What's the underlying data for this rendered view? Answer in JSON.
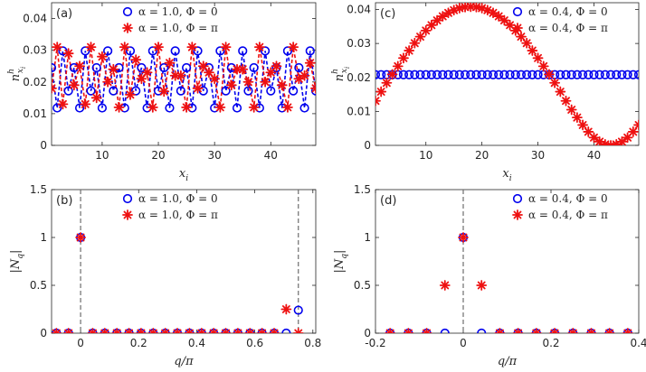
{
  "figure": {
    "description_free": true
  },
  "colors": {
    "blue": "#0000ee",
    "red": "#ee1111",
    "axis": "#262626",
    "dash": "#6e6e6e"
  },
  "chart_data": [
    {
      "id": "a",
      "type": "line",
      "panel_label": "(a)",
      "xlabel": "x_i",
      "ylabel": "n^h_{x_i}",
      "xlim": [
        1,
        48
      ],
      "ylim": [
        0,
        0.045
      ],
      "xticks": [
        10,
        20,
        30,
        40
      ],
      "xtick_labels": [
        "10",
        "20",
        "30",
        "40"
      ],
      "yticks": [
        0,
        0.01,
        0.02,
        0.03,
        0.04
      ],
      "ytick_labels": [
        "0",
        "0.01",
        "0.02",
        "0.03",
        "0.04"
      ],
      "legend": [
        "α = 1.0,  Φ = 0",
        "α = 1.0,  Φ = π"
      ],
      "legend_position": "top-center",
      "series": [
        {
          "name": "α = 1.0,  Φ = 0",
          "marker": "open-circle",
          "line": "dashed",
          "color": "#0000ee",
          "x": [
            1,
            2,
            3,
            4,
            5,
            6,
            7,
            8,
            9,
            10,
            11,
            12,
            13,
            14,
            15,
            16,
            17,
            18,
            19,
            20,
            21,
            22,
            23,
            24,
            25,
            26,
            27,
            28,
            29,
            30,
            31,
            32,
            33,
            34,
            35,
            36,
            37,
            38,
            39,
            40,
            41,
            42,
            43,
            44,
            45,
            46,
            47,
            48
          ],
          "y": [
            0.0245,
            0.0118,
            0.0298,
            0.0172,
            0.0245,
            0.0118,
            0.0298,
            0.0172,
            0.0245,
            0.0118,
            0.0298,
            0.0172,
            0.0245,
            0.0118,
            0.0298,
            0.0172,
            0.0245,
            0.0118,
            0.0298,
            0.0172,
            0.0245,
            0.0118,
            0.0298,
            0.0172,
            0.0245,
            0.0118,
            0.0298,
            0.0172,
            0.0245,
            0.0118,
            0.0298,
            0.0172,
            0.0245,
            0.0118,
            0.0298,
            0.0172,
            0.0245,
            0.0118,
            0.0298,
            0.0172,
            0.0245,
            0.0118,
            0.0298,
            0.0172,
            0.0245,
            0.0118,
            0.0298,
            0.0172
          ]
        },
        {
          "name": "α = 1.0,  Φ = π",
          "marker": "asterisk",
          "line": "dashed",
          "color": "#ee1111",
          "x": [
            1,
            2,
            3,
            4,
            5,
            6,
            7,
            8,
            9,
            10,
            11,
            12,
            13,
            14,
            15,
            16,
            17,
            18,
            19,
            20,
            21,
            22,
            23,
            24,
            25,
            26,
            27,
            28,
            29,
            30,
            31,
            32,
            33,
            34,
            35,
            36,
            37,
            38,
            39,
            40,
            41,
            42,
            43,
            44,
            45,
            46,
            47,
            48
          ],
          "y": [
            0.018,
            0.031,
            0.013,
            0.029,
            0.019,
            0.025,
            0.013,
            0.031,
            0.015,
            0.028,
            0.02,
            0.024,
            0.012,
            0.031,
            0.016,
            0.027,
            0.021,
            0.023,
            0.012,
            0.031,
            0.017,
            0.026,
            0.022,
            0.022,
            0.012,
            0.031,
            0.018,
            0.025,
            0.023,
            0.021,
            0.012,
            0.031,
            0.019,
            0.024,
            0.024,
            0.02,
            0.012,
            0.031,
            0.02,
            0.023,
            0.025,
            0.019,
            0.012,
            0.031,
            0.021,
            0.022,
            0.026,
            0.018
          ]
        }
      ]
    },
    {
      "id": "b",
      "type": "scatter",
      "panel_label": "(b)",
      "xlabel": "q/π",
      "ylabel": "|N_q|",
      "xlim": [
        -0.1,
        0.81
      ],
      "ylim": [
        0,
        1.5
      ],
      "xticks": [
        0,
        0.2,
        0.4,
        0.6,
        0.8
      ],
      "xtick_labels": [
        "0",
        "0.2",
        "0.4",
        "0.6",
        "0.8"
      ],
      "yticks": [
        0,
        0.5,
        1,
        1.5
      ],
      "ytick_labels": [
        "0",
        "0.5",
        "1",
        "1.5"
      ],
      "vlines": [
        0,
        0.75
      ],
      "legend": [
        "α = 1.0,  Φ = 0",
        "α = 1.0,  Φ = π"
      ],
      "legend_position": "top-center",
      "series": [
        {
          "name": "α = 1.0,  Φ = 0",
          "marker": "open-circle",
          "color": "#0000ee",
          "x": [
            -0.0833,
            -0.0417,
            0,
            0.0417,
            0.0833,
            0.125,
            0.1667,
            0.2083,
            0.25,
            0.2917,
            0.3333,
            0.375,
            0.4167,
            0.4583,
            0.5,
            0.5417,
            0.5833,
            0.625,
            0.6667,
            0.7083,
            0.75
          ],
          "y": [
            0,
            0,
            1,
            0,
            0,
            0,
            0,
            0,
            0,
            0,
            0,
            0,
            0,
            0,
            0,
            0,
            0,
            0,
            0,
            0,
            0.24
          ]
        },
        {
          "name": "α = 1.0,  Φ = π",
          "marker": "asterisk",
          "color": "#ee1111",
          "x": [
            -0.0833,
            -0.0417,
            0,
            0.0417,
            0.0833,
            0.125,
            0.1667,
            0.2083,
            0.25,
            0.2917,
            0.3333,
            0.375,
            0.4167,
            0.4583,
            0.5,
            0.5417,
            0.5833,
            0.625,
            0.6667,
            0.7083,
            0.75
          ],
          "y": [
            0,
            0,
            1,
            0,
            0,
            0,
            0,
            0,
            0,
            0,
            0,
            0,
            0,
            0,
            0,
            0,
            0,
            0,
            0,
            0.25,
            0
          ]
        }
      ]
    },
    {
      "id": "c",
      "type": "scatter",
      "panel_label": "(c)",
      "xlabel": "x_i",
      "ylabel": "n^h_{x_i}",
      "xlim": [
        1,
        48
      ],
      "ylim": [
        0,
        0.042
      ],
      "xticks": [
        10,
        20,
        30,
        40
      ],
      "xtick_labels": [
        "10",
        "20",
        "30",
        "40"
      ],
      "yticks": [
        0,
        0.01,
        0.02,
        0.03,
        0.04
      ],
      "ytick_labels": [
        "0",
        "0.01",
        "0.02",
        "0.03",
        "0.04"
      ],
      "legend": [
        "α = 0.4,  Φ = 0",
        "α = 0.4,  Φ = π"
      ],
      "legend_position": "top-right",
      "series": [
        {
          "name": "α = 0.4,  Φ = 0",
          "marker": "open-circle",
          "color": "#0000ee",
          "x": [
            1,
            2,
            3,
            4,
            5,
            6,
            7,
            8,
            9,
            10,
            11,
            12,
            13,
            14,
            15,
            16,
            17,
            18,
            19,
            20,
            21,
            22,
            23,
            24,
            25,
            26,
            27,
            28,
            29,
            30,
            31,
            32,
            33,
            34,
            35,
            36,
            37,
            38,
            39,
            40,
            41,
            42,
            43,
            44,
            45,
            46,
            47,
            48
          ],
          "y": [
            0.0208,
            0.0208,
            0.0208,
            0.0208,
            0.0208,
            0.0208,
            0.0208,
            0.0208,
            0.0208,
            0.0208,
            0.0208,
            0.0208,
            0.0208,
            0.0208,
            0.0208,
            0.0208,
            0.0208,
            0.0208,
            0.0208,
            0.0208,
            0.0208,
            0.0208,
            0.0208,
            0.0208,
            0.0208,
            0.0208,
            0.0208,
            0.0208,
            0.0208,
            0.0208,
            0.0208,
            0.0208,
            0.0208,
            0.0208,
            0.0208,
            0.0208,
            0.0208,
            0.0208,
            0.0208,
            0.0208,
            0.0208,
            0.0208,
            0.0208,
            0.0208,
            0.0208,
            0.0208,
            0.0208,
            0.0208
          ]
        },
        {
          "name": "α = 0.4,  Φ = π",
          "marker": "asterisk",
          "color": "#ee1111",
          "x": [
            1,
            2,
            3,
            4,
            5,
            6,
            7,
            8,
            9,
            10,
            11,
            12,
            13,
            14,
            15,
            16,
            17,
            18,
            19,
            20,
            21,
            22,
            23,
            24,
            25,
            26,
            27,
            28,
            29,
            30,
            31,
            32,
            33,
            34,
            35,
            36,
            37,
            38,
            39,
            40,
            41,
            42,
            43,
            44,
            45,
            46,
            47,
            48
          ],
          "y": [
            0.0131,
            0.0158,
            0.0184,
            0.0209,
            0.0233,
            0.0257,
            0.0279,
            0.0301,
            0.032,
            0.0338,
            0.0354,
            0.0368,
            0.038,
            0.039,
            0.0398,
            0.0404,
            0.0407,
            0.0408,
            0.0407,
            0.0404,
            0.0398,
            0.039,
            0.038,
            0.0368,
            0.0354,
            0.0338,
            0.032,
            0.0301,
            0.0279,
            0.0257,
            0.0233,
            0.0209,
            0.0184,
            0.0158,
            0.0131,
            0.0105,
            0.0082,
            0.006,
            0.004,
            0.0023,
            0.0011,
            0.0003,
            0.0,
            0.0003,
            0.0011,
            0.0023,
            0.004,
            0.006
          ]
        }
      ]
    },
    {
      "id": "d",
      "type": "scatter",
      "panel_label": "(d)",
      "xlabel": "q/π",
      "ylabel": "|N_q|",
      "xlim": [
        -0.2,
        0.4
      ],
      "ylim": [
        0,
        1.5
      ],
      "xticks": [
        -0.2,
        0,
        0.2,
        0.4
      ],
      "xtick_labels": [
        "-0.2",
        "0",
        "0.2",
        "0.4"
      ],
      "yticks": [
        0,
        0.5,
        1,
        1.5
      ],
      "ytick_labels": [
        "0",
        "0.5",
        "1",
        "1.5"
      ],
      "vlines": [
        0
      ],
      "legend": [
        "α = 0.4,  Φ = 0",
        "α = 0.4,  Φ = π"
      ],
      "legend_position": "top-right",
      "series": [
        {
          "name": "α = 0.4,  Φ = 0",
          "marker": "open-circle",
          "color": "#0000ee",
          "x": [
            -0.1667,
            -0.125,
            -0.0833,
            -0.0417,
            0,
            0.0417,
            0.0833,
            0.125,
            0.1667,
            0.2083,
            0.25,
            0.2917,
            0.3333,
            0.375
          ],
          "y": [
            0,
            0,
            0,
            0,
            1,
            0,
            0,
            0,
            0,
            0,
            0,
            0,
            0,
            0
          ]
        },
        {
          "name": "α = 0.4,  Φ = π",
          "marker": "asterisk",
          "color": "#ee1111",
          "x": [
            -0.1667,
            -0.125,
            -0.0833,
            -0.0417,
            0,
            0.0417,
            0.0833,
            0.125,
            0.1667,
            0.2083,
            0.25,
            0.2917,
            0.3333,
            0.375
          ],
          "y": [
            0,
            0,
            0,
            0.5,
            1,
            0.5,
            0,
            0,
            0,
            0,
            0,
            0,
            0,
            0
          ]
        }
      ]
    }
  ]
}
